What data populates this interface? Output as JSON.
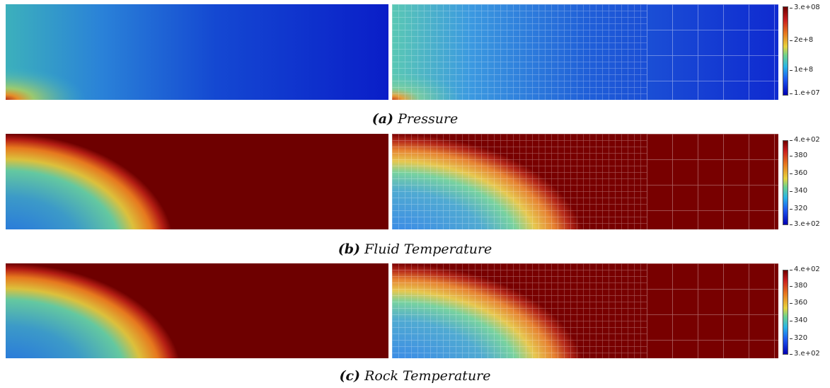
{
  "figure": {
    "rows": [
      {
        "id": "pressure",
        "caption_label": "(a)",
        "caption_text": "Pressure",
        "colorbar_ticks": [
          "3.e+08",
          "2e+8",
          "1e+8",
          "1.e+07"
        ],
        "fine_field": "pressure",
        "mesh_field": "pressure"
      },
      {
        "id": "fluid-temperature",
        "caption_label": "(b)",
        "caption_text": "Fluid Temperature",
        "colorbar_ticks": [
          "4.e+02",
          "380",
          "360",
          "340",
          "320",
          "3.e+02"
        ],
        "fine_field": "temperature",
        "mesh_field": "temperature"
      },
      {
        "id": "rock-temperature",
        "caption_label": "(c)",
        "caption_text": "Rock Temperature",
        "colorbar_ticks": [
          "4.e+02",
          "380",
          "360",
          "340",
          "320",
          "3.e+02"
        ],
        "fine_field": "temperature",
        "mesh_field": "temperature"
      }
    ],
    "colors": {
      "dark_blue": "#0000b4",
      "blue": "#1e5af0",
      "cyan": "#46b4d2",
      "green": "#6ed28c",
      "yellow": "#e6be3c",
      "orange": "#e6781e",
      "red": "#b41414",
      "dark_red": "#6e0000"
    }
  }
}
